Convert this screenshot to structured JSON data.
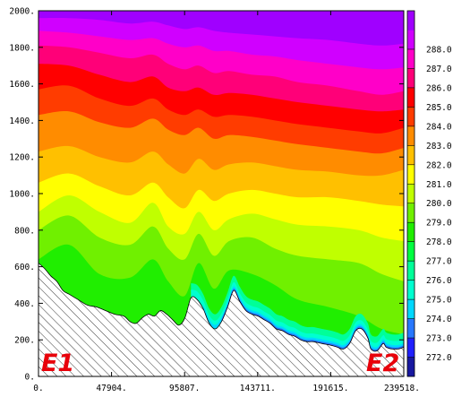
{
  "chart_data": {
    "type": "filled-contour",
    "title": "",
    "xlabel": "",
    "ylabel": "",
    "xlim": [
      0,
      239518
    ],
    "ylim": [
      0,
      2000
    ],
    "x_ticks": [
      0,
      47904,
      95807,
      143711,
      191615,
      239518
    ],
    "x_tick_labels": [
      "0.",
      "47904.",
      "95807.",
      "143711.",
      "191615.",
      "239518."
    ],
    "y_ticks": [
      0,
      200,
      400,
      600,
      800,
      1000,
      1200,
      1400,
      1600,
      1800,
      2000
    ],
    "y_tick_labels": [
      "0.",
      "200.",
      "400.",
      "600.",
      "800.",
      "1000.",
      "1200.",
      "1400.",
      "1600.",
      "1800.",
      "2000."
    ],
    "colorbar": {
      "placement": "right",
      "levels": [
        272.0,
        273.0,
        274.0,
        275.0,
        276.0,
        277.0,
        278.0,
        279.0,
        280.0,
        281.0,
        282.0,
        283.0,
        284.0,
        285.0,
        286.0,
        287.0,
        288.0
      ],
      "labels": [
        "272.0",
        "273.0",
        "274.0",
        "275.0",
        "276.0",
        "277.0",
        "278.0",
        "279.0",
        "280.0",
        "281.0",
        "282.0",
        "283.0",
        "284.0",
        "285.0",
        "286.0",
        "287.0",
        "288.0"
      ],
      "colors": [
        "#1818a0",
        "#2020ff",
        "#2878ff",
        "#00d8ff",
        "#00ffd0",
        "#00ff98",
        "#00ff40",
        "#20ee00",
        "#70f000",
        "#c0ff00",
        "#ffff00",
        "#ffc000",
        "#ff8c00",
        "#ff3c00",
        "#ff0000",
        "#ff0078",
        "#ff00c8",
        "#d000ff",
        "#a000ff"
      ]
    },
    "terrain": {
      "x": [
        0,
        4000,
        8000,
        12000,
        16000,
        20000,
        26000,
        32000,
        38000,
        44000,
        50000,
        56000,
        60000,
        64000,
        68000,
        72000,
        76000,
        80000,
        84000,
        88000,
        92000,
        96000,
        100000,
        104000,
        108000,
        112000,
        116000,
        120000,
        124000,
        128000,
        132000,
        136000,
        140000,
        144000,
        148000,
        152000,
        156000,
        160000,
        164000,
        168000,
        172000,
        176000,
        180000,
        186000,
        192000,
        196000,
        200000,
        204000,
        208000,
        212000,
        216000,
        218000,
        222000,
        226000,
        228000,
        232000,
        236000,
        239518
      ],
      "elev_m": [
        620,
        590,
        550,
        520,
        470,
        450,
        420,
        390,
        380,
        360,
        340,
        330,
        300,
        290,
        320,
        340,
        330,
        360,
        340,
        310,
        280,
        320,
        430,
        420,
        370,
        290,
        260,
        300,
        380,
        470,
        410,
        360,
        340,
        330,
        310,
        290,
        260,
        250,
        230,
        220,
        200,
        190,
        190,
        180,
        170,
        160,
        150,
        180,
        250,
        260,
        210,
        150,
        140,
        180,
        160,
        150,
        150,
        160
      ]
    },
    "isotherms": [
      {
        "level": 278.0,
        "x": [
          0,
          20000,
          40000,
          60000,
          75000,
          85000,
          95807,
          105000,
          115000,
          125000,
          140000,
          155000,
          170000,
          190000,
          210000,
          225000,
          239518
        ],
        "y": [
          640,
          720,
          560,
          540,
          640,
          520,
          440,
          620,
          480,
          580,
          560,
          500,
          420,
          380,
          330,
          260,
          230
        ]
      },
      {
        "level": 279.0,
        "x": [
          0,
          20000,
          40000,
          60000,
          75000,
          85000,
          95807,
          105000,
          115000,
          125000,
          140000,
          155000,
          170000,
          190000,
          210000,
          225000,
          239518
        ],
        "y": [
          800,
          880,
          760,
          720,
          820,
          700,
          640,
          780,
          660,
          740,
          760,
          700,
          660,
          640,
          620,
          560,
          520
        ]
      },
      {
        "level": 280.0,
        "x": [
          0,
          20000,
          40000,
          60000,
          75000,
          85000,
          95807,
          105000,
          115000,
          125000,
          140000,
          155000,
          170000,
          190000,
          210000,
          225000,
          239518
        ],
        "y": [
          900,
          990,
          900,
          840,
          950,
          820,
          780,
          900,
          800,
          860,
          890,
          860,
          830,
          820,
          800,
          760,
          740
        ]
      },
      {
        "level": 281.0,
        "x": [
          0,
          20000,
          40000,
          60000,
          75000,
          85000,
          95807,
          105000,
          115000,
          125000,
          140000,
          155000,
          170000,
          190000,
          210000,
          225000,
          239518
        ],
        "y": [
          1060,
          1110,
          1040,
          990,
          1060,
          980,
          920,
          1020,
          960,
          1000,
          1020,
          1000,
          980,
          980,
          960,
          940,
          930
        ]
      },
      {
        "level": 282.0,
        "x": [
          0,
          20000,
          40000,
          60000,
          75000,
          85000,
          95807,
          105000,
          115000,
          125000,
          140000,
          155000,
          170000,
          190000,
          210000,
          225000,
          239518
        ],
        "y": [
          1230,
          1260,
          1200,
          1170,
          1230,
          1160,
          1110,
          1190,
          1130,
          1160,
          1170,
          1150,
          1130,
          1120,
          1100,
          1100,
          1130
        ]
      },
      {
        "level": 283.0,
        "x": [
          0,
          20000,
          40000,
          60000,
          75000,
          85000,
          95807,
          105000,
          115000,
          125000,
          140000,
          155000,
          170000,
          190000,
          210000,
          225000,
          239518
        ],
        "y": [
          1430,
          1450,
          1390,
          1360,
          1410,
          1350,
          1320,
          1360,
          1300,
          1320,
          1310,
          1290,
          1270,
          1250,
          1230,
          1220,
          1250
        ]
      },
      {
        "level": 284.0,
        "x": [
          0,
          20000,
          40000,
          60000,
          75000,
          85000,
          95807,
          105000,
          115000,
          125000,
          140000,
          155000,
          170000,
          190000,
          210000,
          225000,
          239518
        ],
        "y": [
          1570,
          1590,
          1520,
          1480,
          1520,
          1460,
          1430,
          1460,
          1420,
          1430,
          1420,
          1400,
          1380,
          1360,
          1340,
          1330,
          1360
        ]
      },
      {
        "level": 285.0,
        "x": [
          0,
          20000,
          40000,
          60000,
          75000,
          85000,
          95807,
          105000,
          115000,
          125000,
          140000,
          155000,
          170000,
          190000,
          210000,
          225000,
          239518
        ],
        "y": [
          1710,
          1700,
          1650,
          1610,
          1640,
          1580,
          1560,
          1580,
          1540,
          1550,
          1540,
          1520,
          1500,
          1480,
          1460,
          1450,
          1460
        ]
      },
      {
        "level": 286.0,
        "x": [
          0,
          20000,
          40000,
          60000,
          75000,
          85000,
          95807,
          105000,
          115000,
          125000,
          140000,
          155000,
          170000,
          190000,
          210000,
          225000,
          239518
        ],
        "y": [
          1810,
          1800,
          1770,
          1740,
          1760,
          1710,
          1680,
          1700,
          1660,
          1670,
          1650,
          1640,
          1610,
          1590,
          1560,
          1540,
          1560
        ]
      },
      {
        "level": 287.0,
        "x": [
          0,
          20000,
          40000,
          60000,
          75000,
          85000,
          95807,
          105000,
          115000,
          125000,
          140000,
          155000,
          170000,
          190000,
          210000,
          225000,
          239518
        ],
        "y": [
          1890,
          1880,
          1860,
          1840,
          1850,
          1820,
          1800,
          1810,
          1780,
          1780,
          1760,
          1750,
          1730,
          1710,
          1690,
          1680,
          1690
        ]
      },
      {
        "level": 288.0,
        "x": [
          0,
          20000,
          40000,
          60000,
          75000,
          85000,
          95807,
          105000,
          115000,
          125000,
          140000,
          155000,
          170000,
          190000,
          210000,
          225000,
          239518
        ],
        "y": [
          1960,
          1960,
          1950,
          1930,
          1940,
          1920,
          1900,
          1910,
          1890,
          1880,
          1870,
          1860,
          1850,
          1840,
          1820,
          1810,
          1820
        ]
      }
    ],
    "endpoint_labels": [
      "E1",
      "E2"
    ]
  }
}
